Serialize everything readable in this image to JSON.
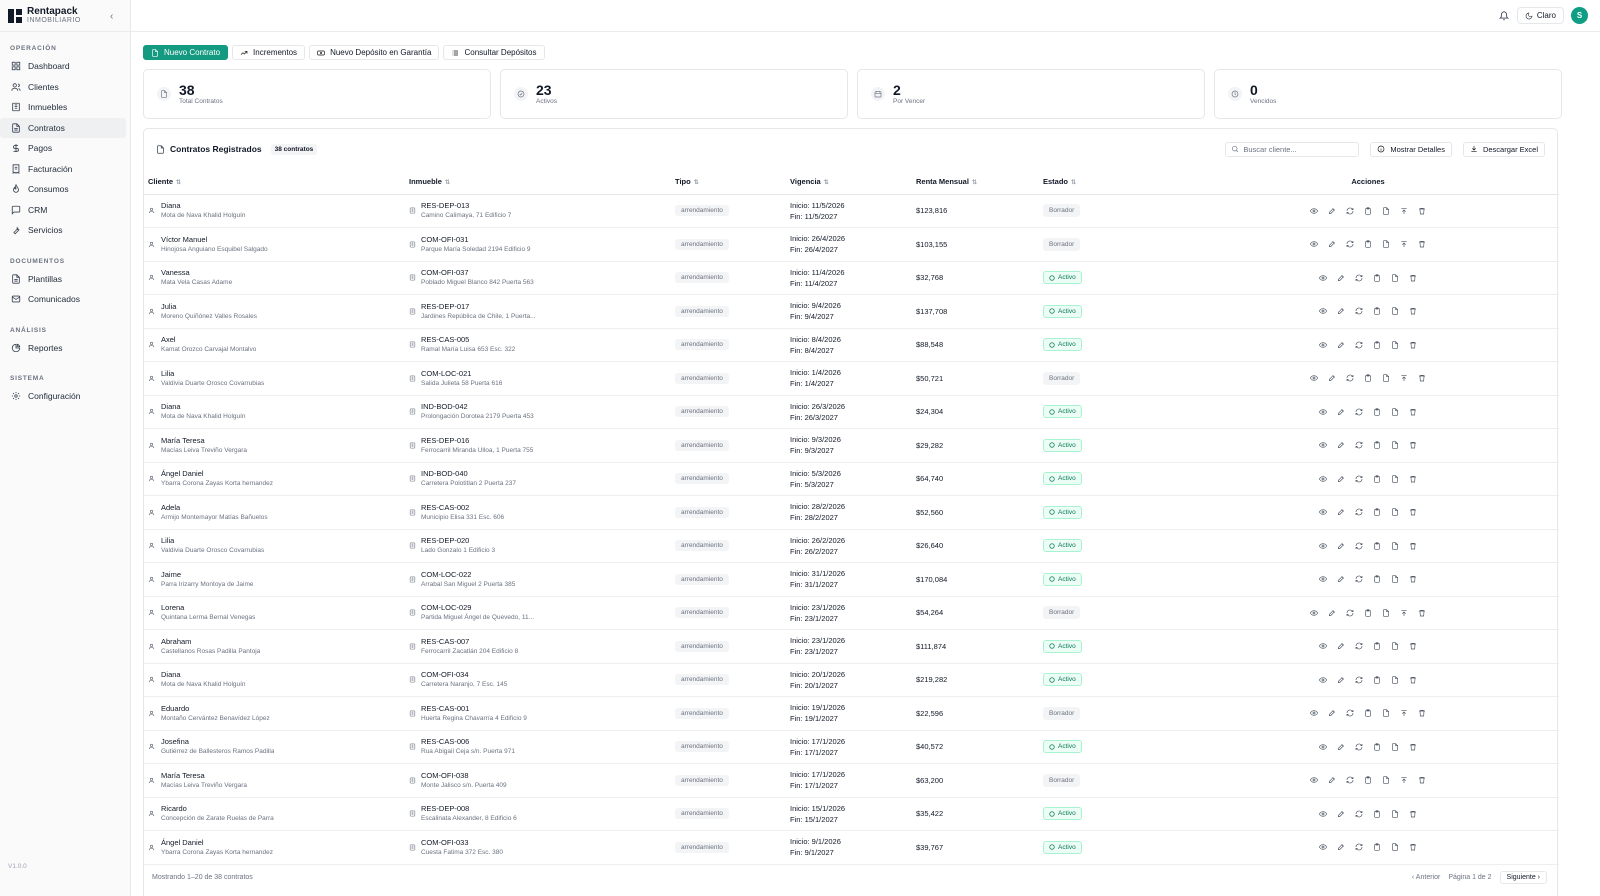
{
  "brand": {
    "name": "Rentapack",
    "sub": "INMOBILIARIO"
  },
  "sidebar": {
    "groups": [
      {
        "title": "OPERACIÓN",
        "items": [
          {
            "label": "Dashboard",
            "icon": "grid-icon"
          },
          {
            "label": "Clientes",
            "icon": "users-icon"
          },
          {
            "label": "Inmuebles",
            "icon": "building-icon"
          },
          {
            "label": "Contratos",
            "icon": "file-icon",
            "active": true
          },
          {
            "label": "Pagos",
            "icon": "dollar-icon"
          },
          {
            "label": "Facturación",
            "icon": "receipt-icon"
          },
          {
            "label": "Consumos",
            "icon": "flame-icon"
          },
          {
            "label": "CRM",
            "icon": "chat-icon"
          },
          {
            "label": "Servicios",
            "icon": "wrench-icon"
          }
        ]
      },
      {
        "title": "DOCUMENTOS",
        "items": [
          {
            "label": "Plantillas",
            "icon": "file-icon"
          },
          {
            "label": "Comunicados",
            "icon": "mail-icon"
          }
        ]
      },
      {
        "title": "ANÁLISIS",
        "items": [
          {
            "label": "Reportes",
            "icon": "pie-icon"
          }
        ]
      },
      {
        "title": "SISTEMA",
        "items": [
          {
            "label": "Configuración",
            "icon": "gear-icon"
          }
        ]
      }
    ],
    "version": "V1.0.0"
  },
  "topbar": {
    "theme_label": "Claro",
    "avatar": "S"
  },
  "actions": {
    "new_contract": "Nuevo Contrato",
    "increments": "Incrementos",
    "new_deposit": "Nuevo Depósito en Garantía",
    "check_deposits": "Consultar Depósitos"
  },
  "stats": [
    {
      "value": "38",
      "label": "Total Contratos"
    },
    {
      "value": "23",
      "label": "Activos"
    },
    {
      "value": "2",
      "label": "Por Vencer"
    },
    {
      "value": "0",
      "label": "Vencidos"
    }
  ],
  "panel": {
    "title": "Contratos Registrados",
    "count": "38 contratos",
    "search_placeholder": "Buscar cliente...",
    "details_label": "Mostrar Detalles",
    "excel_label": "Descargar Excel",
    "columns": {
      "client": "Cliente",
      "property": "Inmueble",
      "type": "Tipo",
      "validity": "Vigencia",
      "rent": "Renta Mensual",
      "status": "Estado",
      "actions": "Acciones"
    },
    "footer": "Mostrando 1–20 de 38 contratos",
    "pager": {
      "prev": "‹  Anterior",
      "page": "Página 1 de 2",
      "next": "Siguiente  ›"
    }
  },
  "rows": [
    {
      "name": "Diana",
      "full": "Mota de Nava Khalid Holguín",
      "code": "RES-DEP-013",
      "addr": "Camino Calimaya, 71 Edificio 7",
      "type": "arrendamiento",
      "start": "Inicio: 11/5/2026",
      "end": "Fin: 11/5/2027",
      "rent": "$123,816",
      "status": "Borrador"
    },
    {
      "name": "Víctor Manuel",
      "full": "Hinojosa Anguiano Esquibel Salgado",
      "code": "COM-OFI-031",
      "addr": "Parque María Soledad 2194 Edificio 9",
      "type": "arrendamiento",
      "start": "Inicio: 26/4/2026",
      "end": "Fin: 26/4/2027",
      "rent": "$103,155",
      "status": "Borrador"
    },
    {
      "name": "Vanessa",
      "full": "Mata Vela Casas Adame",
      "code": "COM-OFI-037",
      "addr": "Poblado Miguel Blanco 842 Puerta 563",
      "type": "arrendamiento",
      "start": "Inicio: 11/4/2026",
      "end": "Fin: 11/4/2027",
      "rent": "$32,768",
      "status": "Activo"
    },
    {
      "name": "Julia",
      "full": "Moreno Quiñónez Valles Rosales",
      "code": "RES-DEP-017",
      "addr": "Jardines República de Chile, 1 Puerta...",
      "type": "arrendamiento",
      "start": "Inicio: 9/4/2026",
      "end": "Fin: 9/4/2027",
      "rent": "$137,708",
      "status": "Activo"
    },
    {
      "name": "Axel",
      "full": "Kamat Orozco Carvajal Montalvo",
      "code": "RES-CAS-005",
      "addr": "Ramal María Luisa 653 Esc. 322",
      "type": "arrendamiento",
      "start": "Inicio: 8/4/2026",
      "end": "Fin: 8/4/2027",
      "rent": "$88,548",
      "status": "Activo"
    },
    {
      "name": "Lilia",
      "full": "Valdivia Duarte Orosco Covarrubias",
      "code": "COM-LOC-021",
      "addr": "Salida Julieta 58 Puerta 616",
      "type": "arrendamiento",
      "start": "Inicio: 1/4/2026",
      "end": "Fin: 1/4/2027",
      "rent": "$50,721",
      "status": "Borrador"
    },
    {
      "name": "Diana",
      "full": "Mota de Nava Khalid Holguín",
      "code": "IND-BOD-042",
      "addr": "Prolongación Dorotea 2179 Puerta 453",
      "type": "arrendamiento",
      "start": "Inicio: 26/3/2026",
      "end": "Fin: 26/3/2027",
      "rent": "$24,304",
      "status": "Activo"
    },
    {
      "name": "María Teresa",
      "full": "Macías Leiva Treviño Vergara",
      "code": "RES-DEP-016",
      "addr": "Ferrocarril Miranda Ulloa, 1 Puerta 755",
      "type": "arrendamiento",
      "start": "Inicio: 9/3/2026",
      "end": "Fin: 9/3/2027",
      "rent": "$29,282",
      "status": "Activo"
    },
    {
      "name": "Ángel Daniel",
      "full": "Ybarra Corona Zayas Korta hernandez",
      "code": "IND-BOD-040",
      "addr": "Carretera Polotitlan 2 Puerta 237",
      "type": "arrendamiento",
      "start": "Inicio: 5/3/2026",
      "end": "Fin: 5/3/2027",
      "rent": "$64,740",
      "status": "Activo"
    },
    {
      "name": "Adela",
      "full": "Armijo Montemayor Matías Bañuelos",
      "code": "RES-CAS-002",
      "addr": "Municipio Elisa 331 Esc. 606",
      "type": "arrendamiento",
      "start": "Inicio: 28/2/2026",
      "end": "Fin: 28/2/2027",
      "rent": "$52,560",
      "status": "Activo"
    },
    {
      "name": "Lilia",
      "full": "Valdivia Duarte Orosco Covarrubias",
      "code": "RES-DEP-020",
      "addr": "Lado Gonzalo 1 Edificio 3",
      "type": "arrendamiento",
      "start": "Inicio: 26/2/2026",
      "end": "Fin: 26/2/2027",
      "rent": "$26,640",
      "status": "Activo"
    },
    {
      "name": "Jaime",
      "full": "Parra Irizarry Montoya de Jaime",
      "code": "COM-LOC-022",
      "addr": "Arrabal San Miguel 2 Puerta 385",
      "type": "arrendamiento",
      "start": "Inicio: 31/1/2026",
      "end": "Fin: 31/1/2027",
      "rent": "$170,084",
      "status": "Activo"
    },
    {
      "name": "Lorena",
      "full": "Quintana Lerma Bernal Venegas",
      "code": "COM-LOC-029",
      "addr": "Partida Miguel Ángel de Quevedo, 11...",
      "type": "arrendamiento",
      "start": "Inicio: 23/1/2026",
      "end": "Fin: 23/1/2027",
      "rent": "$54,264",
      "status": "Borrador"
    },
    {
      "name": "Abraham",
      "full": "Castellanos Rosas Padilla Pantoja",
      "code": "RES-CAS-007",
      "addr": "Ferrocarril Zacatlán 204 Edificio 8",
      "type": "arrendamiento",
      "start": "Inicio: 23/1/2026",
      "end": "Fin: 23/1/2027",
      "rent": "$111,874",
      "status": "Activo"
    },
    {
      "name": "Diana",
      "full": "Mota de Nava Khalid Holguín",
      "code": "COM-OFI-034",
      "addr": "Carretera Naranjo, 7 Esc. 145",
      "type": "arrendamiento",
      "start": "Inicio: 20/1/2026",
      "end": "Fin: 20/1/2027",
      "rent": "$219,282",
      "status": "Activo"
    },
    {
      "name": "Eduardo",
      "full": "Montaño Cervántez Benavídez López",
      "code": "RES-CAS-001",
      "addr": "Huerta Regina Chavarría 4 Edificio 9",
      "type": "arrendamiento",
      "start": "Inicio: 19/1/2026",
      "end": "Fin: 19/1/2027",
      "rent": "$22,596",
      "status": "Borrador"
    },
    {
      "name": "Josefina",
      "full": "Gutiérrez de Ballesteros Ramos Padilla",
      "code": "RES-CAS-006",
      "addr": "Rua Abigail Ceja s/n. Puerta 971",
      "type": "arrendamiento",
      "start": "Inicio: 17/1/2026",
      "end": "Fin: 17/1/2027",
      "rent": "$40,572",
      "status": "Activo"
    },
    {
      "name": "María Teresa",
      "full": "Macías Leiva Treviño Vergara",
      "code": "COM-OFI-038",
      "addr": "Monte Jalisco s/n. Puerta 409",
      "type": "arrendamiento",
      "start": "Inicio: 17/1/2026",
      "end": "Fin: 17/1/2027",
      "rent": "$63,200",
      "status": "Borrador"
    },
    {
      "name": "Ricardo",
      "full": "Concepción de Zarate Ruelas de Parra",
      "code": "RES-DEP-008",
      "addr": "Escalinata Alexander, 8 Edificio 6",
      "type": "arrendamiento",
      "start": "Inicio: 15/1/2026",
      "end": "Fin: 15/1/2027",
      "rent": "$35,422",
      "status": "Activo"
    },
    {
      "name": "Ángel Daniel",
      "full": "Ybarra Corona Zayas Korta hernandez",
      "code": "COM-OFI-033",
      "addr": "Cuesta Fatima 372 Esc. 380",
      "type": "arrendamiento",
      "start": "Inicio: 9/1/2026",
      "end": "Fin: 9/1/2027",
      "rent": "$39,767",
      "status": "Activo"
    }
  ]
}
